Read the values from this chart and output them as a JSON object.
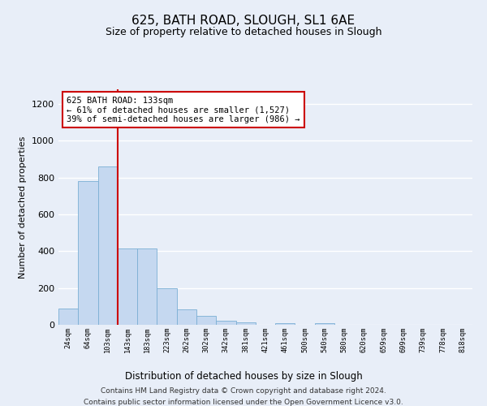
{
  "title1": "625, BATH ROAD, SLOUGH, SL1 6AE",
  "title2": "Size of property relative to detached houses in Slough",
  "xlabel": "Distribution of detached houses by size in Slough",
  "ylabel": "Number of detached properties",
  "bar_color": "#c5d8f0",
  "bar_edge_color": "#7bafd4",
  "categories": [
    "24sqm",
    "64sqm",
    "103sqm",
    "143sqm",
    "183sqm",
    "223sqm",
    "262sqm",
    "302sqm",
    "342sqm",
    "381sqm",
    "421sqm",
    "461sqm",
    "500sqm",
    "540sqm",
    "580sqm",
    "620sqm",
    "659sqm",
    "699sqm",
    "739sqm",
    "778sqm",
    "818sqm"
  ],
  "values": [
    90,
    780,
    860,
    415,
    415,
    200,
    85,
    50,
    22,
    15,
    0,
    10,
    0,
    10,
    0,
    0,
    0,
    0,
    0,
    0,
    0
  ],
  "vline_x": 2.5,
  "annotation_text": "625 BATH ROAD: 133sqm\n← 61% of detached houses are smaller (1,527)\n39% of semi-detached houses are larger (986) →",
  "annotation_box_color": "#ffffff",
  "annotation_box_edge": "#cc0000",
  "vline_color": "#cc0000",
  "ylim": [
    0,
    1280
  ],
  "yticks": [
    0,
    200,
    400,
    600,
    800,
    1000,
    1200
  ],
  "footer1": "Contains HM Land Registry data © Crown copyright and database right 2024.",
  "footer2": "Contains public sector information licensed under the Open Government Licence v3.0.",
  "background_color": "#e8eef8",
  "grid_color": "#ffffff"
}
